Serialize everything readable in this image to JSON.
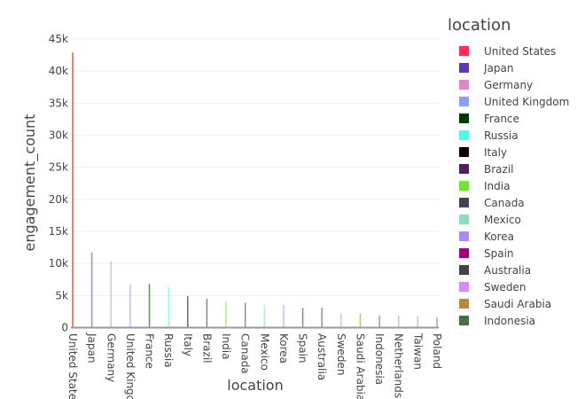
{
  "chart_data": {
    "type": "bar",
    "title": "",
    "xlabel": "location",
    "ylabel": "engagement_count",
    "ylim": [
      0,
      45000
    ],
    "yticks": [
      0,
      5000,
      10000,
      15000,
      20000,
      25000,
      30000,
      35000,
      40000,
      45000
    ],
    "ytick_labels": [
      "0",
      "5k",
      "10k",
      "15k",
      "20k",
      "25k",
      "30k",
      "35k",
      "40k",
      "45k"
    ],
    "grid": true,
    "legend_title": "location",
    "legend_position": "right",
    "categories": [
      "United States",
      "Japan",
      "Germany",
      "United Kingdom",
      "France",
      "Russia",
      "Italy",
      "Brazil",
      "India",
      "Canada",
      "Mexico",
      "Korea",
      "Spain",
      "Australia",
      "Sweden",
      "Saudi Arabia",
      "Indonesia",
      "Netherlands",
      "Taiwan",
      "Poland"
    ],
    "tick_labels_displayed": [
      "United State",
      "Japan",
      "Germany",
      "United Kingo",
      "France",
      "Russia",
      "Italy",
      "Brazil",
      "India",
      "Canada",
      "Mexico",
      "Korea",
      "Spain",
      "Australia",
      "Sweden",
      "Saudi Arabia",
      "Indonesia",
      "Netherlands",
      "Taiwan",
      "Poland"
    ],
    "values": [
      42900,
      11700,
      10300,
      6800,
      6800,
      6300,
      4900,
      4500,
      4100,
      3900,
      3500,
      3500,
      3100,
      3100,
      2200,
      2200,
      1900,
      1900,
      1800,
      1600
    ],
    "colors": [
      "#FD3216",
      "#6A3DB5",
      "#E088C0",
      "#8C9DFF",
      "#003A00",
      "#4AFFE8",
      "#110000",
      "#4F2160",
      "#75E03A",
      "#434354",
      "#8EDBBE",
      "#A78BFA",
      "#A0007A",
      "#444444",
      "#D38BFF",
      "#B8893A",
      "#456E48",
      "#D08AA8",
      "#A3A07A",
      "#9A4A9A"
    ],
    "legend_visible_count": 17
  },
  "legend": {
    "title": "location",
    "items": [
      {
        "label": "United States",
        "color": "#FF2A5A"
      },
      {
        "label": "Japan",
        "color": "#5A3AAE"
      },
      {
        "label": "Germany",
        "color": "#E088C0"
      },
      {
        "label": "United Kingdom",
        "color": "#8C9DFF"
      },
      {
        "label": "France",
        "color": "#003A00"
      },
      {
        "label": "Russia",
        "color": "#4AFFE8"
      },
      {
        "label": "Italy",
        "color": "#110000"
      },
      {
        "label": "Brazil",
        "color": "#4F2160"
      },
      {
        "label": "India",
        "color": "#75E03A"
      },
      {
        "label": "Canada",
        "color": "#434354"
      },
      {
        "label": "Mexico",
        "color": "#8EDBBE"
      },
      {
        "label": "Korea",
        "color": "#A78BFA"
      },
      {
        "label": "Spain",
        "color": "#A0007A"
      },
      {
        "label": "Australia",
        "color": "#444444"
      },
      {
        "label": "Sweden",
        "color": "#D38BFF"
      },
      {
        "label": "Saudi Arabia",
        "color": "#B8893A"
      },
      {
        "label": "Indonesia",
        "color": "#456E48"
      }
    ]
  }
}
